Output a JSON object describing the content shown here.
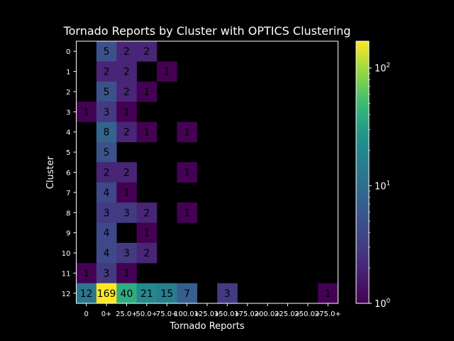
{
  "chart_data": {
    "type": "heatmap",
    "title": "Tornado Reports by Cluster with OPTICS Clustering",
    "xlabel": "Tornado Reports",
    "ylabel": "Cluster",
    "x_categories": [
      "0",
      "0+",
      "25.0+",
      "50.0+",
      "75.0+",
      "100.0+",
      "125.0+",
      "150.0+",
      "175.0+",
      "200.0+",
      "225.0+",
      "250.0+",
      "275.0+"
    ],
    "y_categories": [
      "0",
      "1",
      "2",
      "3",
      "4",
      "5",
      "6",
      "7",
      "8",
      "9",
      "10",
      "11",
      "12"
    ],
    "values": [
      [
        null,
        5,
        2,
        2,
        null,
        null,
        null,
        null,
        null,
        null,
        null,
        null,
        null
      ],
      [
        null,
        2,
        2,
        null,
        1,
        null,
        null,
        null,
        null,
        null,
        null,
        null,
        null
      ],
      [
        null,
        5,
        2,
        1,
        null,
        null,
        null,
        null,
        null,
        null,
        null,
        null,
        null
      ],
      [
        1,
        3,
        1,
        null,
        null,
        null,
        null,
        null,
        null,
        null,
        null,
        null,
        null
      ],
      [
        null,
        8,
        2,
        1,
        null,
        1,
        null,
        null,
        null,
        null,
        null,
        null,
        null
      ],
      [
        null,
        5,
        null,
        null,
        null,
        null,
        null,
        null,
        null,
        null,
        null,
        null,
        null
      ],
      [
        null,
        2,
        2,
        null,
        null,
        1,
        null,
        null,
        null,
        null,
        null,
        null,
        null
      ],
      [
        null,
        4,
        1,
        null,
        null,
        null,
        null,
        null,
        null,
        null,
        null,
        null,
        null
      ],
      [
        null,
        3,
        3,
        2,
        null,
        1,
        null,
        null,
        null,
        null,
        null,
        null,
        null
      ],
      [
        null,
        4,
        null,
        1,
        null,
        null,
        null,
        null,
        null,
        null,
        null,
        null,
        null
      ],
      [
        null,
        4,
        3,
        2,
        null,
        null,
        null,
        null,
        null,
        null,
        null,
        null,
        null
      ],
      [
        1,
        3,
        1,
        null,
        null,
        null,
        null,
        null,
        null,
        null,
        null,
        null,
        null
      ],
      [
        12,
        169,
        40,
        21,
        15,
        7,
        null,
        3,
        null,
        null,
        null,
        null,
        1
      ]
    ],
    "colorbar": {
      "scale": "log",
      "range": [
        1,
        169
      ],
      "colormap": "viridis",
      "tick_labels": [
        "10^0",
        "10^1",
        "10^2"
      ]
    },
    "background": "#000000",
    "text_color": "#ffffff",
    "cell_text_color": "#000000"
  }
}
